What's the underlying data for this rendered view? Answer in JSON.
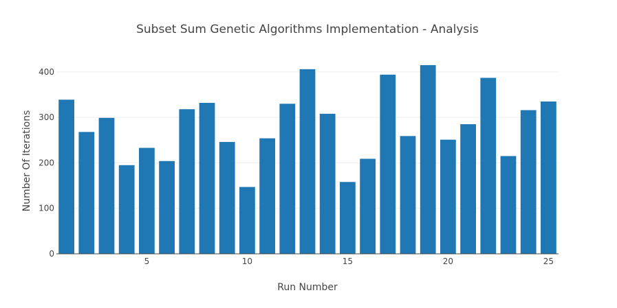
{
  "chart_data": {
    "type": "bar",
    "title": "Subset Sum Genetic Algorithms Implementation - Analysis",
    "xlabel": "Run Number",
    "ylabel": "Number Of Iterations",
    "x": [
      1,
      2,
      3,
      4,
      5,
      6,
      7,
      8,
      9,
      10,
      11,
      12,
      13,
      14,
      15,
      16,
      17,
      18,
      19,
      20,
      21,
      22,
      23,
      24,
      25
    ],
    "values": [
      339,
      268,
      299,
      195,
      233,
      204,
      318,
      332,
      246,
      147,
      254,
      330,
      406,
      308,
      158,
      209,
      394,
      259,
      415,
      251,
      285,
      387,
      215,
      316,
      335
    ],
    "xlim": [
      0.5,
      25.5
    ],
    "ylim": [
      0,
      436
    ],
    "xticks": [
      5,
      10,
      15,
      20,
      25
    ],
    "yticks": [
      0,
      100,
      200,
      300,
      400
    ],
    "grid": "horizontal",
    "bar_color": "#1f77b4",
    "grid_color": "#eeeeee",
    "axis_color": "#444444"
  }
}
